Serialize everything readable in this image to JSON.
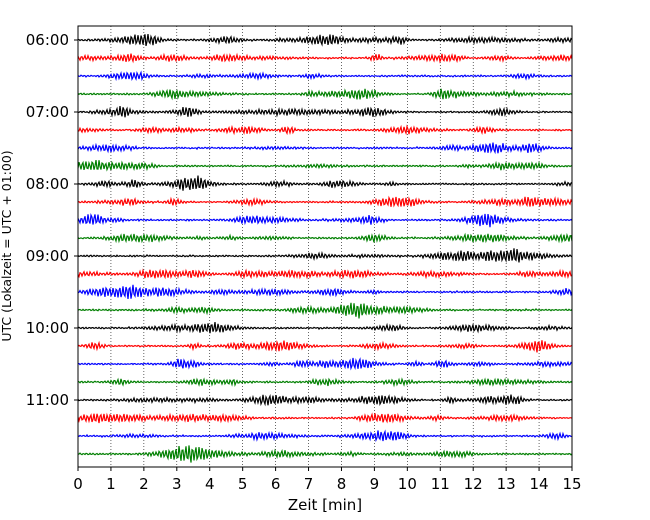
{
  "chart_data": {
    "type": "line",
    "xlabel": "Zeit  [min]",
    "ylabel": "UTC (Lokalzeit = UTC + 01:00)",
    "xlim": [
      0,
      15
    ],
    "x_ticks": [
      "0",
      "1",
      "2",
      "3",
      "4",
      "5",
      "6",
      "7",
      "8",
      "9",
      "10",
      "11",
      "12",
      "13",
      "14",
      "15"
    ],
    "y_ticks": [
      "06:00",
      "07:00",
      "08:00",
      "09:00",
      "10:00",
      "11:00"
    ],
    "grid": "vertical dotted",
    "trace_start_times": [
      "06:00",
      "06:15",
      "06:30",
      "06:45",
      "07:00",
      "07:15",
      "07:30",
      "07:45",
      "08:00",
      "08:15",
      "08:30",
      "08:45",
      "09:00",
      "09:15",
      "09:30",
      "09:45",
      "10:00",
      "10:15",
      "10:30",
      "10:45",
      "11:00",
      "11:15",
      "11:30",
      "11:45"
    ],
    "trace_colors": [
      "#000000",
      "#ff0000",
      "#0000ff",
      "#007f00"
    ]
  }
}
